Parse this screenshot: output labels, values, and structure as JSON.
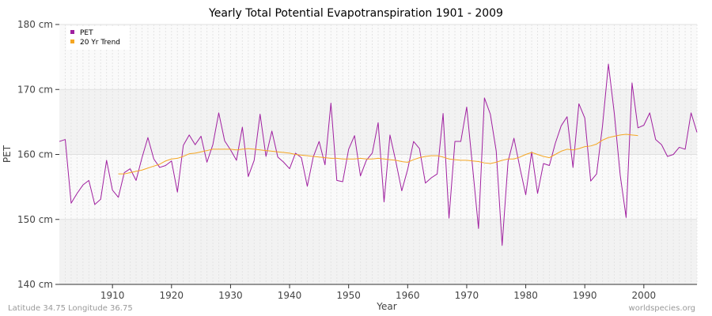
{
  "chart_data": {
    "type": "line",
    "title": "Yearly Total Potential Evapotranspiration 1901 - 2009",
    "xlabel": "Year",
    "ylabel": "PET",
    "xlim": [
      1901,
      2009
    ],
    "ylim": [
      140,
      180
    ],
    "x_ticks": [
      1910,
      1920,
      1930,
      1940,
      1950,
      1960,
      1970,
      1980,
      1990,
      2000
    ],
    "y_ticks": [
      {
        "value": 140,
        "label": "140 cm"
      },
      {
        "value": 150,
        "label": "150 cm"
      },
      {
        "value": 160,
        "label": "160 cm"
      },
      {
        "value": 170,
        "label": "170 cm"
      },
      {
        "value": 180,
        "label": "180 cm"
      }
    ],
    "grid": true,
    "legend_position": "top-left",
    "series": [
      {
        "name": "PET",
        "color": "#a020a0",
        "x": [
          1901,
          1902,
          1903,
          1904,
          1905,
          1906,
          1907,
          1908,
          1909,
          1910,
          1911,
          1912,
          1913,
          1914,
          1915,
          1916,
          1917,
          1918,
          1919,
          1920,
          1921,
          1922,
          1923,
          1924,
          1925,
          1926,
          1927,
          1928,
          1929,
          1930,
          1931,
          1932,
          1933,
          1934,
          1935,
          1936,
          1937,
          1938,
          1939,
          1940,
          1941,
          1942,
          1943,
          1944,
          1945,
          1946,
          1947,
          1948,
          1949,
          1950,
          1951,
          1952,
          1953,
          1954,
          1955,
          1956,
          1957,
          1958,
          1959,
          1960,
          1961,
          1962,
          1963,
          1964,
          1965,
          1966,
          1967,
          1968,
          1969,
          1970,
          1971,
          1972,
          1973,
          1974,
          1975,
          1976,
          1977,
          1978,
          1979,
          1980,
          1981,
          1982,
          1983,
          1984,
          1985,
          1986,
          1987,
          1988,
          1989,
          1990,
          1991,
          1992,
          1993,
          1994,
          1995,
          1996,
          1997,
          1998,
          1999,
          2000,
          2001,
          2002,
          2003,
          2004,
          2005,
          2006,
          2007,
          2008,
          2009
        ],
        "values": [
          162.0,
          162.3,
          152.5,
          154.0,
          155.3,
          156.0,
          152.3,
          153.1,
          159.1,
          154.5,
          153.4,
          157.2,
          157.8,
          156.0,
          159.5,
          162.6,
          159.3,
          158.0,
          158.3,
          159.0,
          154.2,
          161.4,
          163.0,
          161.5,
          162.8,
          158.8,
          161.5,
          166.4,
          162.1,
          160.7,
          159.1,
          164.2,
          156.6,
          159.1,
          166.2,
          159.7,
          163.6,
          159.6,
          158.8,
          157.8,
          160.2,
          159.5,
          155.1,
          159.6,
          162.0,
          158.4,
          167.9,
          156.0,
          155.8,
          160.8,
          162.9,
          156.7,
          159.1,
          160.2,
          164.9,
          152.7,
          163.0,
          158.9,
          154.4,
          157.7,
          162.0,
          160.9,
          155.6,
          156.4,
          157.0,
          166.3,
          150.2,
          162.0,
          162.0,
          167.3,
          158.0,
          148.6,
          168.7,
          166.2,
          160.5,
          146.0,
          158.9,
          162.5,
          158.0,
          153.8,
          160.4,
          154.0,
          158.6,
          158.3,
          161.7,
          164.4,
          165.8,
          158.0,
          167.8,
          165.6,
          155.9,
          157.0,
          164.4,
          173.9,
          166.3,
          156.8,
          150.3,
          171.0,
          164.1,
          164.5,
          166.4,
          162.3,
          161.5,
          159.7,
          160.0,
          161.1,
          160.8,
          166.4,
          163.4
        ]
      },
      {
        "name": "20 Yr Trend",
        "color": "#f5a623",
        "x": [
          1911,
          1912,
          1913,
          1914,
          1915,
          1916,
          1917,
          1918,
          1919,
          1920,
          1921,
          1922,
          1923,
          1924,
          1925,
          1926,
          1927,
          1928,
          1929,
          1930,
          1931,
          1932,
          1933,
          1934,
          1935,
          1936,
          1937,
          1938,
          1939,
          1940,
          1941,
          1942,
          1943,
          1944,
          1945,
          1946,
          1947,
          1948,
          1949,
          1950,
          1951,
          1952,
          1953,
          1954,
          1955,
          1956,
          1957,
          1958,
          1959,
          1960,
          1961,
          1962,
          1963,
          1964,
          1965,
          1966,
          1967,
          1968,
          1969,
          1970,
          1971,
          1972,
          1973,
          1974,
          1975,
          1976,
          1977,
          1978,
          1979,
          1980,
          1981,
          1982,
          1983,
          1984,
          1985,
          1986,
          1987,
          1988,
          1989,
          1990,
          1991,
          1992,
          1993,
          1994,
          1995,
          1996,
          1997,
          1998,
          1999
        ],
        "values": [
          157.0,
          157.0,
          157.2,
          157.4,
          157.6,
          157.9,
          158.2,
          158.5,
          159.0,
          159.3,
          159.4,
          159.7,
          160.1,
          160.2,
          160.4,
          160.6,
          160.8,
          160.8,
          160.8,
          160.8,
          160.7,
          160.8,
          160.9,
          160.8,
          160.7,
          160.6,
          160.5,
          160.4,
          160.3,
          160.2,
          160.0,
          159.9,
          159.8,
          159.7,
          159.6,
          159.5,
          159.4,
          159.4,
          159.3,
          159.3,
          159.3,
          159.4,
          159.3,
          159.3,
          159.4,
          159.3,
          159.2,
          159.1,
          158.9,
          158.8,
          159.2,
          159.5,
          159.7,
          159.8,
          159.8,
          159.6,
          159.3,
          159.2,
          159.1,
          159.1,
          159.0,
          158.9,
          158.7,
          158.6,
          158.8,
          159.1,
          159.3,
          159.3,
          159.6,
          160.0,
          160.3,
          160.0,
          159.7,
          159.5,
          160.0,
          160.5,
          160.8,
          160.7,
          160.9,
          161.2,
          161.3,
          161.6,
          162.2,
          162.6,
          162.8,
          163.0,
          163.1,
          163.0,
          162.9
        ]
      }
    ]
  },
  "footer": {
    "location": "Latitude 34.75 Longitude 36.75",
    "source": "worldspecies.org"
  }
}
